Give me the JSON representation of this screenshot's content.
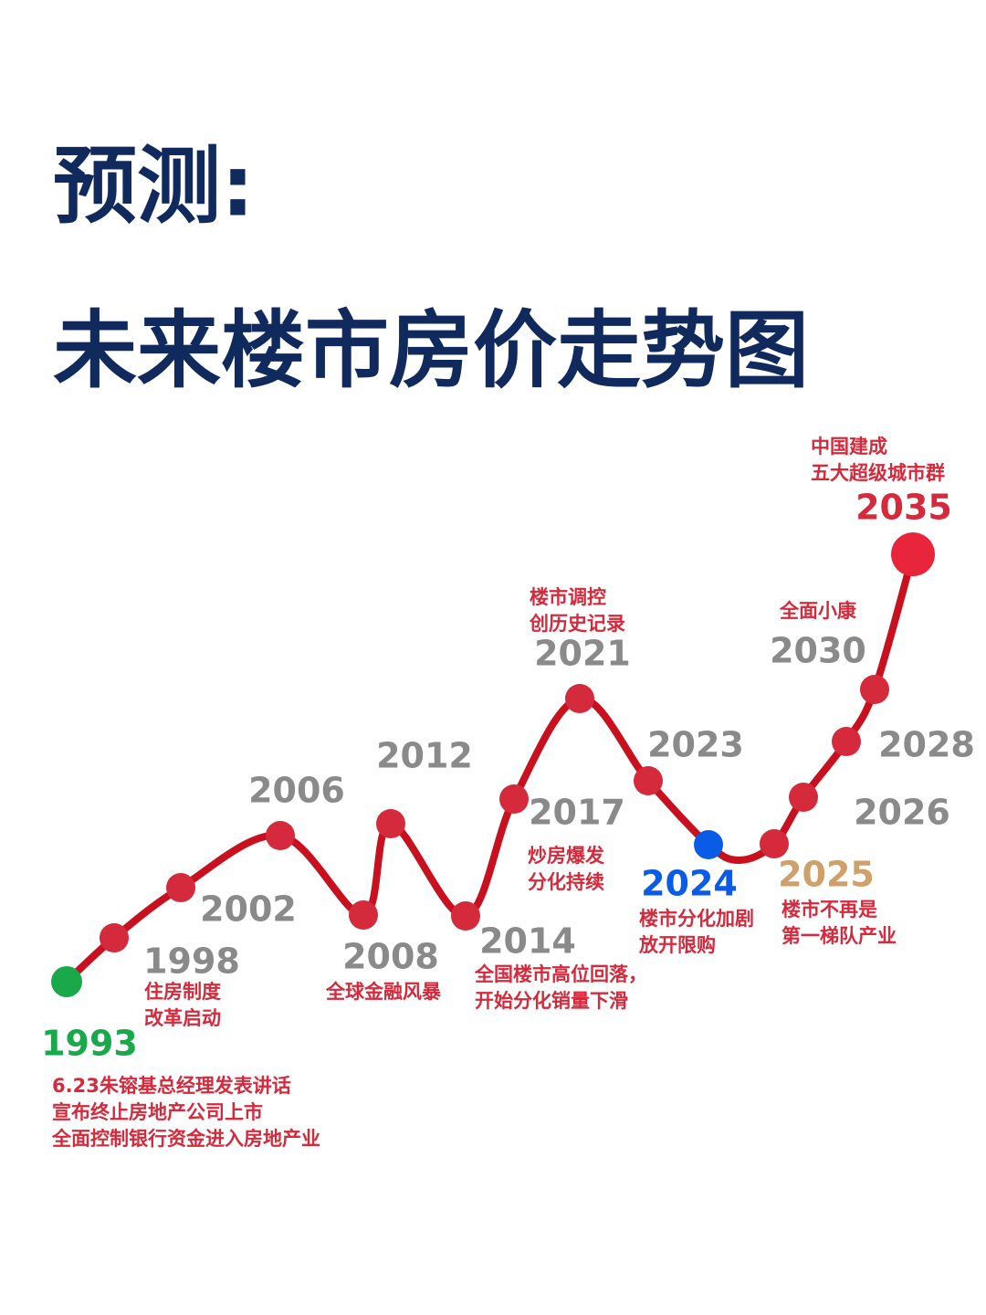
{
  "title": {
    "line1": "预测:",
    "line2": "未来楼市房价走势图"
  },
  "nodes": [
    {
      "year": "1993",
      "notes": [
        "6.23朱镕基总经理发表讲话",
        "宣布终止房地产公司上市",
        "全面控制银行资金进入房地产业"
      ]
    },
    {
      "year": "1998",
      "notes": [
        "住房制度",
        "改革启动"
      ]
    },
    {
      "year": "2002",
      "notes": []
    },
    {
      "year": "2006",
      "notes": []
    },
    {
      "year": "2008",
      "notes": [
        "全球金融风暴"
      ]
    },
    {
      "year": "2012",
      "notes": []
    },
    {
      "year": "2014",
      "notes": [
        "全国楼市高位回落，",
        "开始分化销量下滑"
      ]
    },
    {
      "year": "2017",
      "notes": [
        "炒房爆发",
        "分化持续"
      ]
    },
    {
      "year": "2021",
      "notes": [
        "楼市调控",
        "创历史记录"
      ]
    },
    {
      "year": "2023",
      "notes": []
    },
    {
      "year": "2024",
      "notes": [
        "楼市分化加剧",
        "放开限购"
      ]
    },
    {
      "year": "2025",
      "notes": [
        "楼市不再是",
        "第一梯队产业"
      ]
    },
    {
      "year": "2026",
      "notes": []
    },
    {
      "year": "2028",
      "notes": []
    },
    {
      "year": "2030",
      "notes": [
        "全面小康"
      ]
    },
    {
      "year": "2035",
      "notes": [
        "中国建成",
        "五大超级城市群"
      ]
    }
  ]
}
